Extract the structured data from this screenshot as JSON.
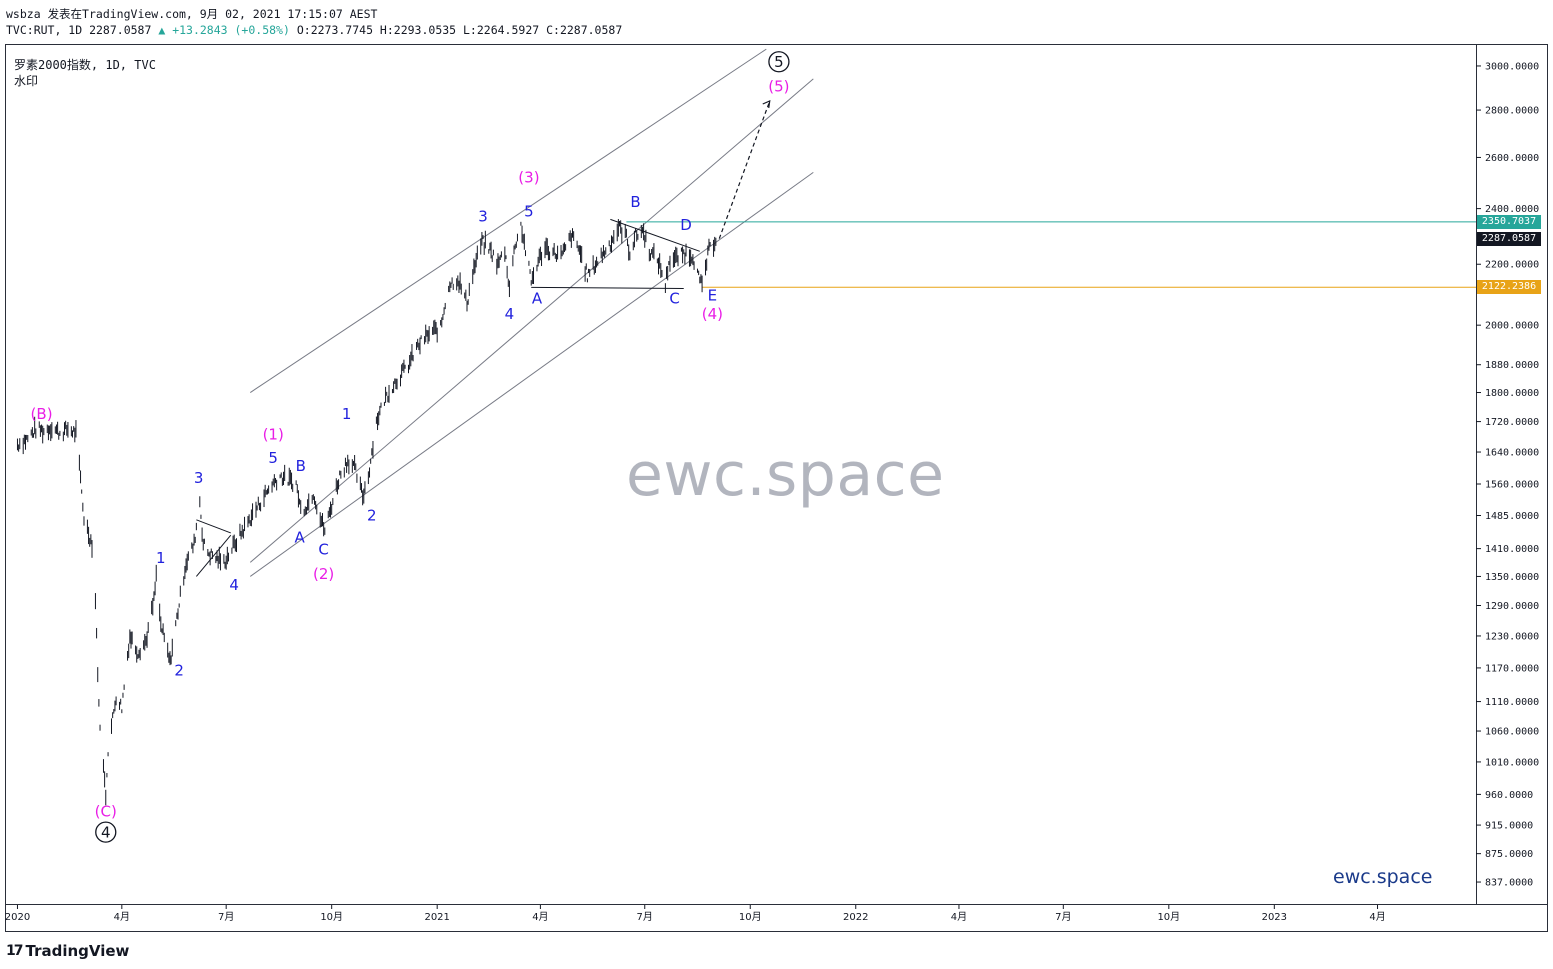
{
  "header": {
    "author": "wsbza",
    "published": "发表在TradingView.com, 9月 02, 2021 17:15:07 AEST",
    "symbol_line": "TVC:RUT, 1D 2287.0587",
    "change": "▲ +13.2843 (+0.58%)",
    "ohlc": "O:2273.7745 H:2293.0535 L:2264.5927 C:2287.0587"
  },
  "chart_title": "罗素2000指数, 1D, TVC",
  "chart_subtitle": "水印",
  "watermark": "ewc.space",
  "brand": "ewc.space",
  "logo": "TradingView",
  "colors": {
    "candle": "#131722",
    "channel": "#787b86",
    "label_blue": "#2222dd",
    "label_magenta": "#e91ee6",
    "resistance_line": "#26a69a",
    "support_line": "#e8a317",
    "last_price_bg": "#131722"
  },
  "price_tags": {
    "resistance": "2350.7037",
    "last": "2287.0587",
    "support": "2122.2386"
  },
  "chart_data": {
    "type": "line",
    "y_scale": "log",
    "ylim": [
      810,
      3100
    ],
    "xlim": [
      "2019-12-22",
      "2023-06-25"
    ],
    "y_ticks": [
      "3000.0000",
      "2800.0000",
      "2600.0000",
      "2400.0000",
      "2200.0000",
      "2000.0000",
      "1880.0000",
      "1800.0000",
      "1720.0000",
      "1640.0000",
      "1560.0000",
      "1485.0000",
      "1410.0000",
      "1350.0000",
      "1290.0000",
      "1230.0000",
      "1170.0000",
      "1110.0000",
      "1060.0000",
      "1010.0000",
      "960.0000",
      "915.0000",
      "875.0000",
      "837.0000"
    ],
    "x_ticks": [
      {
        "date": "2020-01-01",
        "label": "2020"
      },
      {
        "date": "2020-04-01",
        "label": "4月"
      },
      {
        "date": "2020-07-01",
        "label": "7月"
      },
      {
        "date": "2020-10-01",
        "label": "10月"
      },
      {
        "date": "2021-01-01",
        "label": "2021"
      },
      {
        "date": "2021-04-01",
        "label": "4月"
      },
      {
        "date": "2021-07-01",
        "label": "7月"
      },
      {
        "date": "2021-10-01",
        "label": "10月"
      },
      {
        "date": "2022-01-01",
        "label": "2022"
      },
      {
        "date": "2022-04-01",
        "label": "4月"
      },
      {
        "date": "2022-07-01",
        "label": "7月"
      },
      {
        "date": "2022-10-01",
        "label": "10月"
      },
      {
        "date": "2023-01-01",
        "label": "2023"
      },
      {
        "date": "2023-04-01",
        "label": "4月"
      }
    ],
    "price_path": [
      [
        "2020-01-01",
        1660
      ],
      [
        "2020-01-10",
        1675
      ],
      [
        "2020-01-17",
        1700
      ],
      [
        "2020-01-24",
        1695
      ],
      [
        "2020-01-31",
        1705
      ],
      [
        "2020-02-07",
        1690
      ],
      [
        "2020-02-14",
        1700
      ],
      [
        "2020-02-21",
        1690
      ],
      [
        "2020-02-28",
        1480
      ],
      [
        "2020-03-06",
        1420
      ],
      [
        "2020-03-09",
        1300
      ],
      [
        "2020-03-12",
        1100
      ],
      [
        "2020-03-16",
        1000
      ],
      [
        "2020-03-18",
        960
      ],
      [
        "2020-03-20",
        1030
      ],
      [
        "2020-03-24",
        1080
      ],
      [
        "2020-03-27",
        1120
      ],
      [
        "2020-04-01",
        1100
      ],
      [
        "2020-04-08",
        1230
      ],
      [
        "2020-04-15",
        1200
      ],
      [
        "2020-04-22",
        1220
      ],
      [
        "2020-04-29",
        1300
      ],
      [
        "2020-05-01",
        1350
      ],
      [
        "2020-05-05",
        1250
      ],
      [
        "2020-05-13",
        1180
      ],
      [
        "2020-05-20",
        1280
      ],
      [
        "2020-05-27",
        1380
      ],
      [
        "2020-06-03",
        1420
      ],
      [
        "2020-06-08",
        1520
      ],
      [
        "2020-06-11",
        1420
      ],
      [
        "2020-06-16",
        1400
      ],
      [
        "2020-06-22",
        1390
      ],
      [
        "2020-06-29",
        1380
      ],
      [
        "2020-07-06",
        1410
      ],
      [
        "2020-07-13",
        1440
      ],
      [
        "2020-07-20",
        1470
      ],
      [
        "2020-07-27",
        1500
      ],
      [
        "2020-08-03",
        1530
      ],
      [
        "2020-08-10",
        1560
      ],
      [
        "2020-08-17",
        1580
      ],
      [
        "2020-08-24",
        1570
      ],
      [
        "2020-08-31",
        1560
      ],
      [
        "2020-09-04",
        1500
      ],
      [
        "2020-09-10",
        1510
      ],
      [
        "2020-09-15",
        1540
      ],
      [
        "2020-09-21",
        1480
      ],
      [
        "2020-09-25",
        1450
      ],
      [
        "2020-10-01",
        1510
      ],
      [
        "2020-10-08",
        1580
      ],
      [
        "2020-10-15",
        1620
      ],
      [
        "2020-10-21",
        1600
      ],
      [
        "2020-10-28",
        1530
      ],
      [
        "2020-11-02",
        1580
      ],
      [
        "2020-11-09",
        1720
      ],
      [
        "2020-11-16",
        1780
      ],
      [
        "2020-11-23",
        1820
      ],
      [
        "2020-11-30",
        1850
      ],
      [
        "2020-12-07",
        1880
      ],
      [
        "2020-12-14",
        1930
      ],
      [
        "2020-12-21",
        1960
      ],
      [
        "2020-12-28",
        1980
      ],
      [
        "2021-01-04",
        1990
      ],
      [
        "2021-01-11",
        2130
      ],
      [
        "2021-01-19",
        2150
      ],
      [
        "2021-01-27",
        2070
      ],
      [
        "2021-02-01",
        2170
      ],
      [
        "2021-02-09",
        2280
      ],
      [
        "2021-02-16",
        2250
      ],
      [
        "2021-02-23",
        2200
      ],
      [
        "2021-03-01",
        2250
      ],
      [
        "2021-03-05",
        2120
      ],
      [
        "2021-03-10",
        2270
      ],
      [
        "2021-03-15",
        2340
      ],
      [
        "2021-03-19",
        2250
      ],
      [
        "2021-03-24",
        2140
      ],
      [
        "2021-03-29",
        2200
      ],
      [
        "2021-04-05",
        2260
      ],
      [
        "2021-04-12",
        2240
      ],
      [
        "2021-04-20",
        2230
      ],
      [
        "2021-04-28",
        2300
      ],
      [
        "2021-05-05",
        2250
      ],
      [
        "2021-05-12",
        2160
      ],
      [
        "2021-05-19",
        2200
      ],
      [
        "2021-05-26",
        2240
      ],
      [
        "2021-06-02",
        2280
      ],
      [
        "2021-06-08",
        2330
      ],
      [
        "2021-06-14",
        2310
      ],
      [
        "2021-06-18",
        2240
      ],
      [
        "2021-06-23",
        2300
      ],
      [
        "2021-06-29",
        2320
      ],
      [
        "2021-07-06",
        2240
      ],
      [
        "2021-07-13",
        2210
      ],
      [
        "2021-07-19",
        2130
      ],
      [
        "2021-07-22",
        2210
      ],
      [
        "2021-07-29",
        2220
      ],
      [
        "2021-08-05",
        2240
      ],
      [
        "2021-08-12",
        2230
      ],
      [
        "2021-08-18",
        2140
      ],
      [
        "2021-08-20",
        2125
      ],
      [
        "2021-08-26",
        2250
      ],
      [
        "2021-09-01",
        2287
      ]
    ],
    "projection": [
      [
        "2021-09-04",
        2290
      ],
      [
        "2021-10-18",
        2840
      ]
    ],
    "channel_lines": [
      [
        [
          "2020-07-22",
          1800
        ],
        [
          "2021-10-15",
          3080
        ]
      ],
      [
        [
          "2020-07-22",
          1380
        ],
        [
          "2021-11-25",
          2940
        ]
      ],
      [
        [
          "2020-07-22",
          1350
        ],
        [
          "2021-11-25",
          2540
        ]
      ]
    ],
    "trend_lines": [
      [
        [
          "2021-03-24",
          2122
        ],
        [
          "2021-08-04",
          2118
        ]
      ],
      [
        [
          "2021-06-01",
          2360
        ],
        [
          "2021-08-18",
          2245
        ]
      ],
      [
        [
          "2020-06-05",
          1475
        ],
        [
          "2020-07-05",
          1445
        ]
      ],
      [
        [
          "2020-06-05",
          1350
        ],
        [
          "2020-07-05",
          1440
        ]
      ]
    ],
    "horizontal_lines": [
      {
        "y": 2350.7037,
        "from": "2021-06-15",
        "color": "#26a69a"
      },
      {
        "y": 2122.2386,
        "from": "2021-08-20",
        "color": "#e8a317"
      }
    ],
    "wave_labels": [
      {
        "t": "(B)",
        "x": "2020-01-22",
        "y": 1740,
        "c": "magenta"
      },
      {
        "t": "(C)",
        "x": "2020-03-18",
        "y": 935,
        "c": "magenta"
      },
      {
        "t": "4",
        "x": "2020-03-18",
        "y": 905,
        "c": "circle"
      },
      {
        "t": "1",
        "x": "2020-05-05",
        "y": 1390,
        "c": "blue"
      },
      {
        "t": "2",
        "x": "2020-05-21",
        "y": 1165,
        "c": "blue"
      },
      {
        "t": "3",
        "x": "2020-06-07",
        "y": 1575,
        "c": "blue"
      },
      {
        "t": "4",
        "x": "2020-07-08",
        "y": 1332,
        "c": "blue"
      },
      {
        "t": "(1)",
        "x": "2020-08-11",
        "y": 1685,
        "c": "magenta"
      },
      {
        "t": "5",
        "x": "2020-08-11",
        "y": 1625,
        "c": "blue"
      },
      {
        "t": "B",
        "x": "2020-09-04",
        "y": 1605,
        "c": "blue"
      },
      {
        "t": "A",
        "x": "2020-09-03",
        "y": 1435,
        "c": "blue"
      },
      {
        "t": "C",
        "x": "2020-09-24",
        "y": 1408,
        "c": "blue"
      },
      {
        "t": "(2)",
        "x": "2020-09-24",
        "y": 1355,
        "c": "magenta"
      },
      {
        "t": "1",
        "x": "2020-10-14",
        "y": 1740,
        "c": "blue"
      },
      {
        "t": "2",
        "x": "2020-11-05",
        "y": 1485,
        "c": "blue"
      },
      {
        "t": "3",
        "x": "2021-02-10",
        "y": 2370,
        "c": "blue"
      },
      {
        "t": "(3)",
        "x": "2021-03-22",
        "y": 2520,
        "c": "magenta"
      },
      {
        "t": "5",
        "x": "2021-03-22",
        "y": 2390,
        "c": "blue"
      },
      {
        "t": "4",
        "x": "2021-03-05",
        "y": 2035,
        "c": "blue"
      },
      {
        "t": "A",
        "x": "2021-03-29",
        "y": 2085,
        "c": "blue"
      },
      {
        "t": "B",
        "x": "2021-06-23",
        "y": 2425,
        "c": "blue"
      },
      {
        "t": "D",
        "x": "2021-08-06",
        "y": 2340,
        "c": "blue"
      },
      {
        "t": "C",
        "x": "2021-07-27",
        "y": 2085,
        "c": "blue"
      },
      {
        "t": "E",
        "x": "2021-08-29",
        "y": 2095,
        "c": "blue"
      },
      {
        "t": "(4)",
        "x": "2021-08-29",
        "y": 2035,
        "c": "magenta"
      },
      {
        "t": "5",
        "x": "2021-10-26",
        "y": 3020,
        "c": "circle"
      },
      {
        "t": "(5)",
        "x": "2021-10-26",
        "y": 2905,
        "c": "magenta"
      }
    ]
  }
}
